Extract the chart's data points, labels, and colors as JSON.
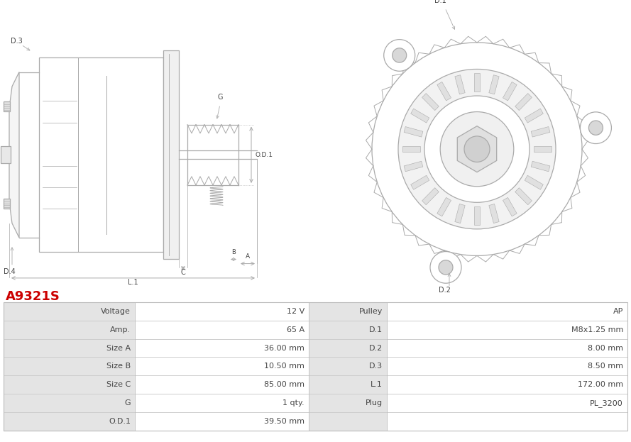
{
  "title": "A9321S",
  "title_color": "#cc0000",
  "image_bg": "#ffffff",
  "table": {
    "left_col": [
      [
        "Voltage",
        "12 V"
      ],
      [
        "Amp.",
        "65 A"
      ],
      [
        "Size A",
        "36.00 mm"
      ],
      [
        "Size B",
        "10.50 mm"
      ],
      [
        "Size C",
        "85.00 mm"
      ],
      [
        "G",
        "1 qty."
      ],
      [
        "O.D.1",
        "39.50 mm"
      ]
    ],
    "right_col": [
      [
        "Pulley",
        "AP"
      ],
      [
        "D.1",
        "M8x1.25 mm"
      ],
      [
        "D.2",
        "8.00 mm"
      ],
      [
        "D.3",
        "8.50 mm"
      ],
      [
        "L.1",
        "172.00 mm"
      ],
      [
        "Plug",
        "PL_3200"
      ],
      [
        "",
        ""
      ]
    ]
  },
  "row_colors": [
    "#e8e8e8",
    "#ffffff"
  ],
  "line_color": "#aaaaaa",
  "text_color": "#444444",
  "label_color": "#555555"
}
